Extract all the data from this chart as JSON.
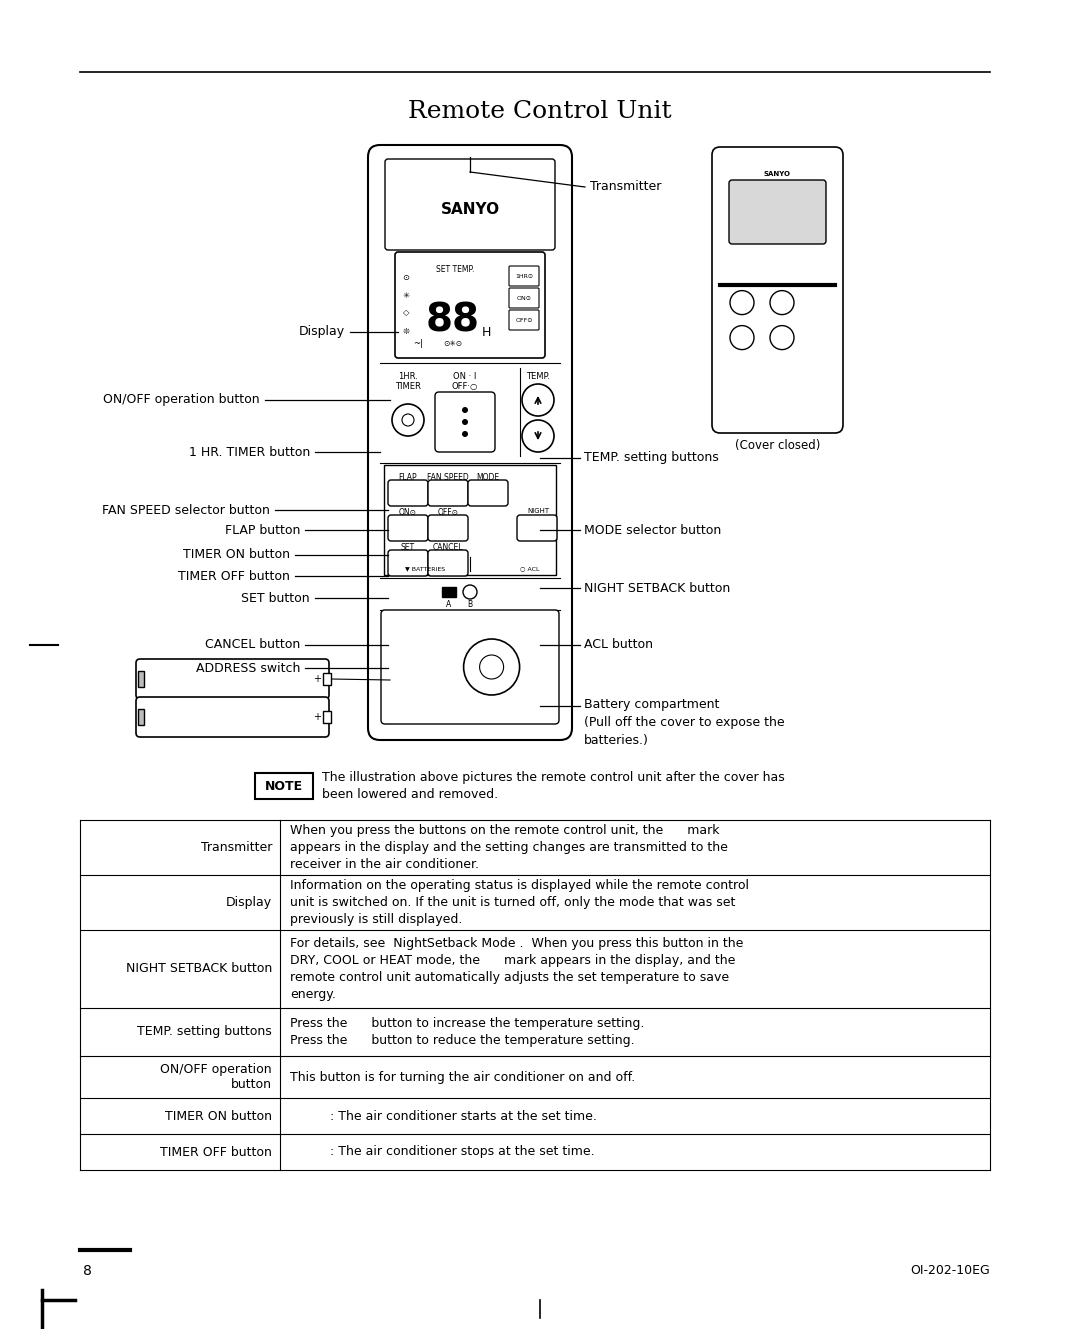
{
  "title": "Remote Control Unit",
  "bg_color": "#ffffff",
  "title_fontsize": 18,
  "page_width": 10.8,
  "page_height": 13.29,
  "page_num": "8",
  "doc_num": "OI-202-10EG",
  "table_rows": [
    {
      "label": "Transmitter",
      "text": "When you press the buttons on the remote control unit, the      mark\nappears in the display and the setting changes are transmitted to the\nreceiver in the air conditioner."
    },
    {
      "label": "Display",
      "text": "Information on the operating status is displayed while the remote control\nunit is switched on. If the unit is turned off, only the mode that was set\npreviously is still displayed."
    },
    {
      "label": "NIGHT SETBACK button",
      "text": "For details, see  NightSetback Mode .  When you press this button in the\nDRY, COOL or HEAT mode, the      mark appears in the display, and the\nremote control unit automatically adjusts the set temperature to save\nenergy."
    },
    {
      "label": "TEMP. setting buttons",
      "text": "Press the      button to increase the temperature setting.\nPress the      button to reduce the temperature setting."
    },
    {
      "label": "ON/OFF operation\nbutton",
      "text": "This button is for turning the air conditioner on and off."
    },
    {
      "label": "TIMER ON button",
      "text": "          : The air conditioner starts at the set time."
    },
    {
      "label": "TIMER OFF button",
      "text": "          : The air conditioner stops at the set time."
    }
  ]
}
